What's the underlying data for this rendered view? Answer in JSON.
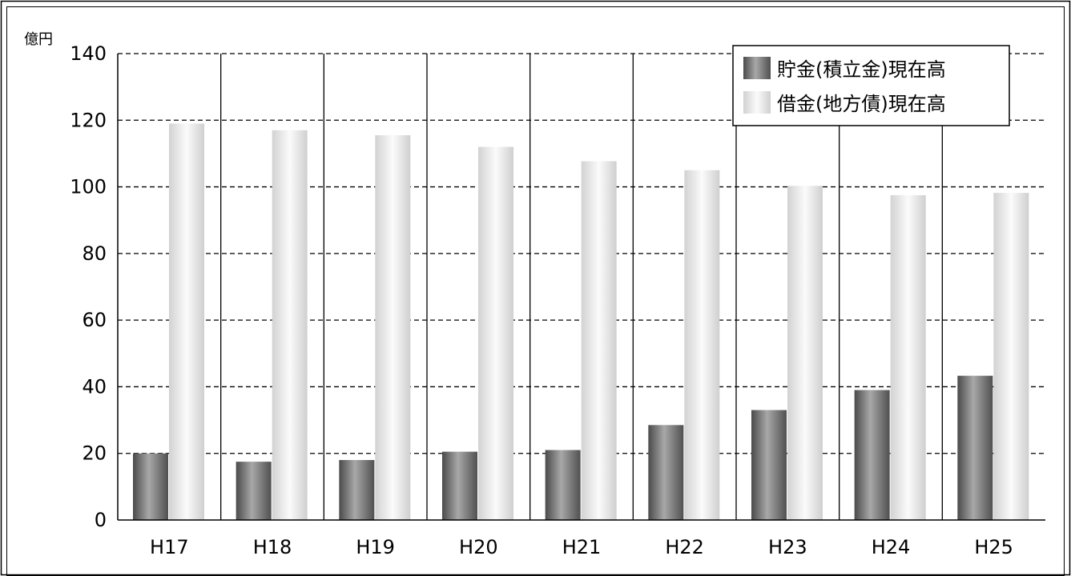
{
  "chart_data": {
    "type": "bar",
    "unit_label": "億円",
    "categories": [
      "H17",
      "H18",
      "H19",
      "H20",
      "H21",
      "H22",
      "H23",
      "H24",
      "H25"
    ],
    "series": [
      {
        "name": "貯金(積立金)現在高",
        "values": [
          20,
          17.5,
          18,
          20.5,
          21,
          28.5,
          33,
          39,
          43.3
        ],
        "color": "#777777"
      },
      {
        "name": "借金(地方債)現在高",
        "values": [
          119,
          117,
          115.5,
          112,
          107.7,
          105,
          100.3,
          97.5,
          98.2
        ],
        "color": "#e6e6e6"
      }
    ],
    "ylim": [
      0,
      140
    ],
    "yticks": [
      "0",
      "20",
      "40",
      "60",
      "80",
      "100",
      "120",
      "140"
    ],
    "grid": true,
    "legend_position": "top-right"
  }
}
